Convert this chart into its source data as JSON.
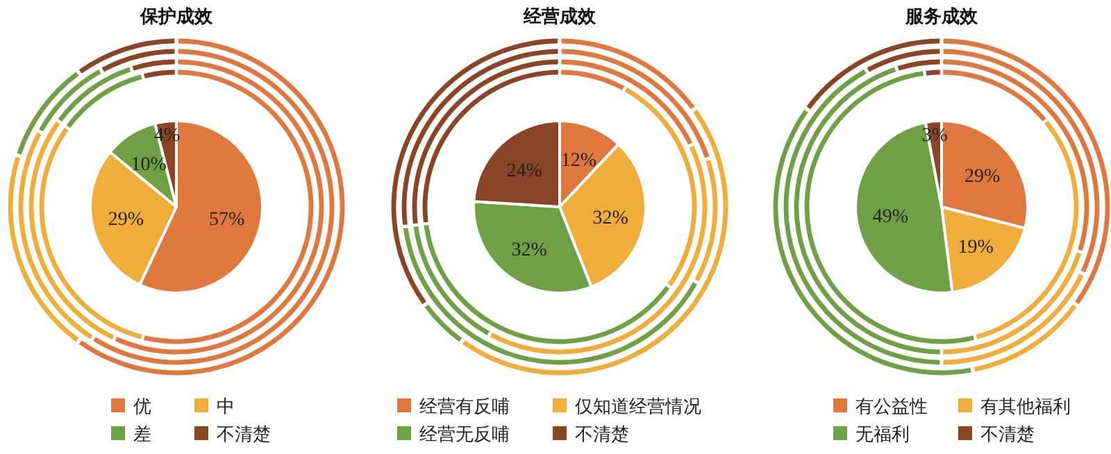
{
  "chart_data": [
    {
      "type": "pie",
      "title": "保护成效",
      "categories": [
        "优",
        "中",
        "差",
        "不清楚"
      ],
      "colors": [
        "#e0773f",
        "#f0ad3a",
        "#70a046",
        "#8a4526"
      ],
      "legend": "bottom",
      "series": [
        {
          "type": "pie",
          "values": [
            57,
            29,
            10,
            4
          ],
          "value_labels": [
            "57%",
            "29%",
            "10%",
            "4%"
          ]
        },
        {
          "type": "donut",
          "values": [
            54,
            31,
            11,
            4
          ]
        },
        {
          "type": "donut",
          "values": [
            57,
            28,
            10,
            5
          ]
        },
        {
          "type": "donut",
          "values": [
            59,
            24,
            9,
            8
          ]
        },
        {
          "type": "donut",
          "values": [
            60,
            20,
            10,
            10
          ]
        }
      ]
    },
    {
      "type": "pie",
      "title": "经营成效",
      "categories": [
        "经营有反哺",
        "仅知道经营情况",
        "经营无反哺",
        "不清楚"
      ],
      "colors": [
        "#e0773f",
        "#f0ad3a",
        "#70a046",
        "#8a4526"
      ],
      "legend": "bottom",
      "series": [
        {
          "type": "pie",
          "values": [
            12,
            32,
            32,
            24
          ],
          "value_labels": [
            "12%",
            "32%",
            "32%",
            "24%"
          ]
        },
        {
          "type": "donut",
          "values": [
            8,
            27,
            38,
            27
          ]
        },
        {
          "type": "donut",
          "values": [
            18,
            40,
            15,
            27
          ]
        },
        {
          "type": "donut",
          "values": [
            20,
            13,
            40,
            27
          ]
        },
        {
          "type": "donut",
          "values": [
            15,
            45,
            5,
            35
          ]
        }
      ]
    },
    {
      "type": "pie",
      "title": "服务成效",
      "categories": [
        "有公益性",
        "有其他福利",
        "无福利",
        "不清楚"
      ],
      "colors": [
        "#e0773f",
        "#f0ad3a",
        "#70a046",
        "#8a4526"
      ],
      "legend": "bottom",
      "series": [
        {
          "type": "pie",
          "values": [
            29,
            19,
            49,
            3
          ],
          "value_labels": [
            "29%",
            "19%",
            "49%",
            "3%"
          ]
        },
        {
          "type": "donut",
          "values": [
            14,
            32,
            52,
            2
          ]
        },
        {
          "type": "donut",
          "values": [
            30,
            20,
            45,
            5
          ]
        },
        {
          "type": "donut",
          "values": [
            32,
            18,
            42,
            8
          ]
        },
        {
          "type": "donut",
          "values": [
            35,
            12,
            38,
            15
          ]
        }
      ]
    }
  ]
}
